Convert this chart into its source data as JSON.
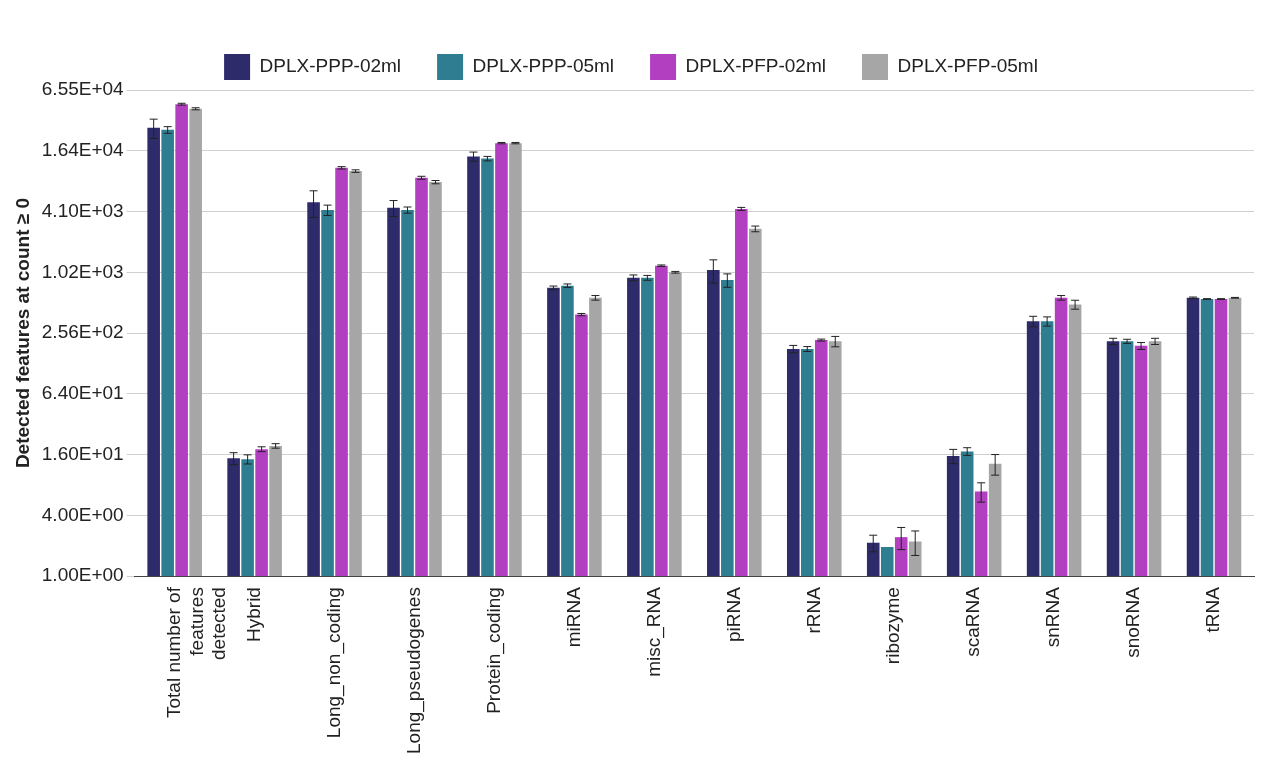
{
  "chart_data": {
    "type": "bar",
    "ylabel": "Detected features at count ≥ 0",
    "categories": [
      "Total number of features detected",
      "Hybrid",
      "Long_non_coding",
      "Long_pseudogenes",
      "Protein_coding",
      "miRNA",
      "misc_RNA",
      "piRNA",
      "rRNA",
      "ribozyme",
      "scaRNA",
      "snRNA",
      "snoRNA",
      "tRNA"
    ],
    "series": [
      {
        "name": "DPLX-PPP-02ml",
        "color": "#2e2b6b",
        "values": [
          27700,
          14.7,
          5070,
          4460,
          14400,
          718,
          903,
          1080,
          178,
          2.14,
          15.5,
          335,
          212,
          572
        ],
        "errors": [
          6000,
          2,
          1500,
          800,
          1500,
          30,
          60,
          280,
          15,
          0.4,
          2.5,
          40,
          15,
          10
        ]
      },
      {
        "name": "DPLX-PPP-05ml",
        "color": "#2f7d91",
        "values": [
          26400,
          14.4,
          4240,
          4240,
          13700,
          755,
          903,
          857,
          178,
          1.94,
          17.2,
          335,
          212,
          556
        ],
        "errors": [
          2000,
          1.5,
          500,
          300,
          700,
          30,
          50,
          130,
          10,
          null,
          1.5,
          35,
          10,
          5
        ]
      },
      {
        "name": "DPLX-PFP-02ml",
        "color": "#b13fbf",
        "values": [
          47400,
          18.1,
          11100,
          8850,
          19500,
          390,
          1190,
          4350,
          218,
          2.43,
          6.9,
          572,
          191,
          556
        ],
        "errors": [
          1000,
          1,
          300,
          300,
          300,
          10,
          20,
          150,
          5,
          0.6,
          1.5,
          30,
          15,
          5
        ]
      },
      {
        "name": "DPLX-PFP-05ml",
        "color": "#a6a6a6",
        "values": [
          42700,
          19.5,
          10300,
          8010,
          19500,
          572,
          1024,
          2760,
          212,
          2.2,
          13.0,
          491,
          212,
          572
        ],
        "errors": [
          1000,
          1,
          300,
          300,
          300,
          30,
          20,
          180,
          25,
          0.6,
          3,
          50,
          15,
          5
        ]
      }
    ],
    "log": "y",
    "ylim": [
      1,
      65536
    ],
    "yticks": [
      {
        "value": 1,
        "label": "1.00E+00"
      },
      {
        "value": 4,
        "label": "4.00E+00"
      },
      {
        "value": 16,
        "label": "1.60E+01"
      },
      {
        "value": 64,
        "label": "6.40E+01"
      },
      {
        "value": 256,
        "label": "2.56E+02"
      },
      {
        "value": 1024,
        "label": "1.02E+03"
      },
      {
        "value": 4096,
        "label": "4.10E+03"
      },
      {
        "value": 16384,
        "label": "1.64E+04"
      },
      {
        "value": 65536,
        "label": "6.55E+04"
      }
    ],
    "grid": "y",
    "legend": "top"
  }
}
